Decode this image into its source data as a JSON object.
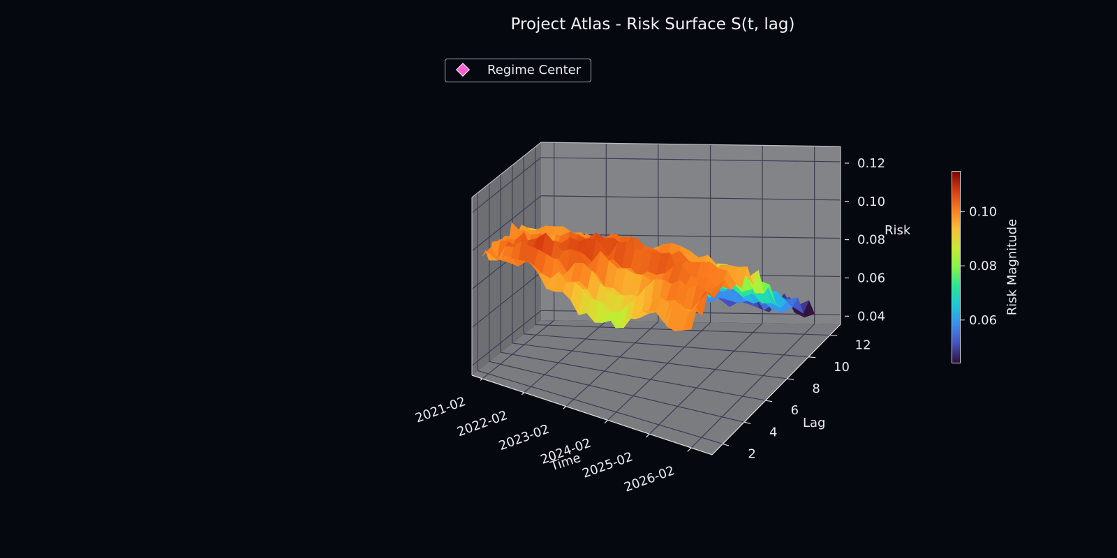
{
  "title": "Project Atlas - Risk Surface S(t, lag)",
  "legend": {
    "label": "Regime Center",
    "marker_color": "#ff5fd2"
  },
  "colorbar": {
    "label": "Risk Magnitude",
    "ticks": [
      "0.06",
      "0.08",
      "0.10"
    ],
    "range": [
      0.044,
      0.115
    ],
    "colormap": "turbo"
  },
  "chart_data": {
    "type": "surface",
    "title": "Project Atlas - Risk Surface S(t, lag)",
    "xlabel": "Time",
    "ylabel": "Lag",
    "zlabel": "Risk",
    "x_ticks": [
      "2021-02",
      "2022-02",
      "2023-02",
      "2024-02",
      "2025-02",
      "2026-02"
    ],
    "y_ticks": [
      "2",
      "4",
      "6",
      "8",
      "10",
      "12"
    ],
    "z_ticks": [
      "0.04",
      "0.06",
      "0.08",
      "0.10",
      "0.12"
    ],
    "xlim": [
      "2020-11",
      "2026-08"
    ],
    "ylim": [
      1,
      13
    ],
    "zlim": [
      0.035,
      0.128
    ],
    "grid": true,
    "legend_position": "top-left",
    "series": [
      {
        "name": "Regime Center",
        "marker": "diamond",
        "color": "#ff5fd2"
      }
    ],
    "time_samples": [
      "2021-02",
      "2022-02",
      "2023-02",
      "2024-02",
      "2025-02",
      "2026-02"
    ],
    "lag_samples": [
      1,
      3,
      5,
      7,
      9,
      11,
      13
    ],
    "surface_z_lag_by_time": [
      [
        0.099,
        0.101,
        0.099,
        0.098,
        0.09,
        0.07,
        0.055
      ],
      [
        0.101,
        0.108,
        0.1,
        0.097,
        0.088,
        0.068,
        0.053
      ],
      [
        0.094,
        0.103,
        0.108,
        0.098,
        0.084,
        0.063,
        0.05
      ],
      [
        0.081,
        0.092,
        0.105,
        0.099,
        0.08,
        0.06,
        0.049
      ],
      [
        0.096,
        0.1,
        0.104,
        0.096,
        0.078,
        0.058,
        0.046
      ],
      [
        0.1,
        0.102,
        0.098,
        0.093,
        0.072,
        0.055,
        0.043
      ]
    ]
  }
}
